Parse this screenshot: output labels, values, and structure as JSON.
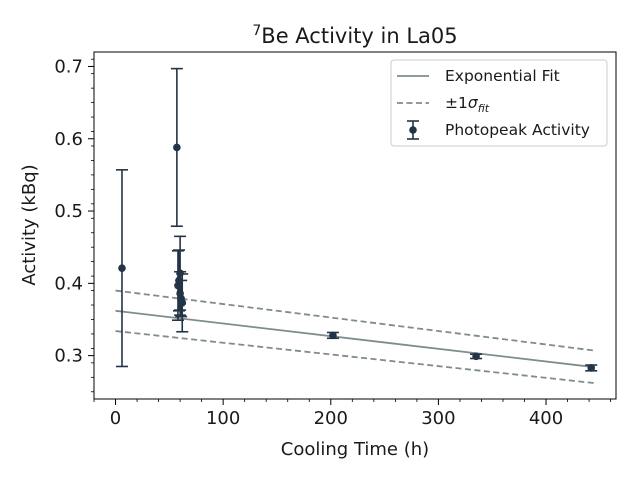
{
  "chart_data": {
    "type": "scatter",
    "title_main": "Be Activity in La05",
    "title_sup": "7",
    "xlabel": "Cooling Time (h)",
    "ylabel": "Activity (kBq)",
    "xlim": [
      -20,
      465
    ],
    "ylim": [
      0.24,
      0.72
    ],
    "xticks": [
      0,
      100,
      200,
      300,
      400
    ],
    "yticks": [
      0.3,
      0.4,
      0.5,
      0.6,
      0.7
    ],
    "grid": false,
    "legend_position": "top-right",
    "legend": {
      "fit": "Exponential Fit",
      "sigma_prefix": "±1",
      "sigma_symbol": "σ",
      "sigma_sub": "fit",
      "data": "Photopeak Activity"
    },
    "colors": {
      "data": "#243447",
      "fit": "#7f8c8d"
    },
    "fit": {
      "x": [
        0,
        445
      ],
      "y": [
        0.362,
        0.284
      ]
    },
    "fit_upper": {
      "x": [
        0,
        445
      ],
      "y": [
        0.39,
        0.307
      ]
    },
    "fit_lower": {
      "x": [
        0,
        445
      ],
      "y": [
        0.334,
        0.262
      ]
    },
    "points": [
      {
        "x": 6,
        "y": 0.421,
        "err": 0.136
      },
      {
        "x": 57,
        "y": 0.588,
        "err": 0.109
      },
      {
        "x": 58,
        "y": 0.397,
        "err": 0.048
      },
      {
        "x": 59,
        "y": 0.404,
        "err": 0.042
      },
      {
        "x": 60,
        "y": 0.414,
        "err": 0.051
      },
      {
        "x": 60,
        "y": 0.386,
        "err": 0.03
      },
      {
        "x": 61,
        "y": 0.379,
        "err": 0.025
      },
      {
        "x": 62,
        "y": 0.373,
        "err": 0.04
      },
      {
        "x": 202,
        "y": 0.328,
        "err": 0.004
      },
      {
        "x": 335,
        "y": 0.299,
        "err": 0.003
      },
      {
        "x": 442,
        "y": 0.283,
        "err": 0.004
      }
    ]
  }
}
